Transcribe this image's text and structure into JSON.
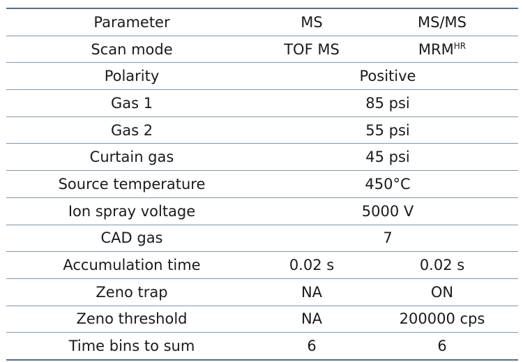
{
  "table": {
    "header": {
      "parameter": "Parameter",
      "ms": "MS",
      "msms": "MS/MS"
    },
    "rows": [
      {
        "parameter": "Scan mode",
        "ms": "TOF MS",
        "msms_base": "MRM",
        "msms_sup": "HR"
      },
      {
        "parameter": "Polarity",
        "shared": "Positive"
      },
      {
        "parameter": "Gas 1",
        "shared": "85 psi"
      },
      {
        "parameter": "Gas 2",
        "shared": "55 psi"
      },
      {
        "parameter": "Curtain gas",
        "shared": "45 psi"
      },
      {
        "parameter": "Source temperature",
        "shared": "450°C"
      },
      {
        "parameter": "Ion spray voltage",
        "shared": "5000 V"
      },
      {
        "parameter": "CAD gas",
        "shared": "7"
      },
      {
        "parameter": "Accumulation time",
        "ms": "0.02 s",
        "msms": "0.02 s"
      },
      {
        "parameter": "Zeno trap",
        "ms": "NA",
        "msms": "ON"
      },
      {
        "parameter": "Zeno threshold",
        "ms": "NA",
        "msms": "200000 cps"
      },
      {
        "parameter": "Time bins to sum",
        "ms": "6",
        "msms": "6"
      }
    ]
  },
  "colors": {
    "rule": "#7a96b3",
    "rule_strong": "#4d6f92",
    "text": "#1a1a1a"
  }
}
